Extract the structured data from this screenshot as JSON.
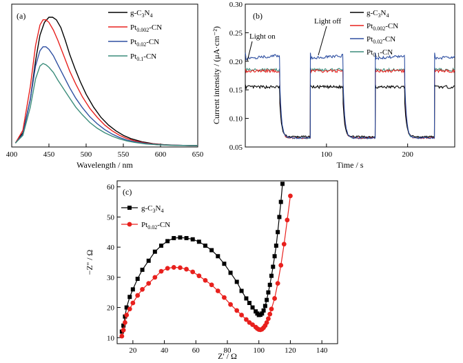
{
  "chart_data": [
    {
      "panel": "(a)",
      "type": "line",
      "xlabel": "Wavelength / nm",
      "ylabel": "",
      "xlim": [
        400,
        650
      ],
      "xticks": [
        400,
        450,
        500,
        550,
        600,
        650
      ],
      "legend_position": "top-right",
      "series": [
        {
          "name": "g-C3N4",
          "name_main": "g-C",
          "name_sub1": "3",
          "name_mid": "N",
          "name_sub2": "4",
          "name_end": "",
          "color": "#000000",
          "x": [
            405,
            415,
            425,
            432,
            438,
            444,
            450,
            455,
            460,
            466,
            472,
            478,
            485,
            492,
            500,
            510,
            520,
            530,
            540,
            550,
            560,
            575,
            590,
            605,
            620,
            635,
            650
          ],
          "y": [
            0.02,
            0.1,
            0.36,
            0.66,
            0.86,
            0.96,
            1.0,
            1.0,
            0.98,
            0.92,
            0.82,
            0.71,
            0.6,
            0.5,
            0.4,
            0.3,
            0.22,
            0.16,
            0.115,
            0.08,
            0.055,
            0.03,
            0.015,
            0.007,
            0.003,
            0.001,
            0.0
          ]
        },
        {
          "name": "Pt0.002-CN",
          "name_main": "Pt",
          "name_sub1": "0.002",
          "name_mid": "-CN",
          "name_sub2": "",
          "name_end": "",
          "color": "#e8201d",
          "x": [
            405,
            415,
            425,
            432,
            438,
            442,
            446,
            450,
            456,
            462,
            470,
            478,
            486,
            495,
            505,
            515,
            525,
            535,
            545,
            555,
            565,
            580,
            595,
            610,
            625,
            640,
            650
          ],
          "y": [
            0.02,
            0.12,
            0.46,
            0.78,
            0.94,
            0.98,
            0.98,
            0.96,
            0.9,
            0.82,
            0.7,
            0.58,
            0.48,
            0.38,
            0.29,
            0.22,
            0.16,
            0.115,
            0.08,
            0.055,
            0.037,
            0.02,
            0.01,
            0.004,
            0.002,
            0.0,
            0.0
          ]
        },
        {
          "name": "Pt0.02-CN",
          "name_main": "Pt",
          "name_sub1": "0.02",
          "name_mid": "-CN",
          "name_sub2": "",
          "name_end": "",
          "color": "#2e4fa1",
          "x": [
            405,
            415,
            425,
            432,
            438,
            442,
            446,
            450,
            456,
            462,
            470,
            478,
            486,
            495,
            505,
            515,
            525,
            535,
            545,
            555,
            565,
            580,
            595,
            610,
            625,
            640,
            650
          ],
          "y": [
            0.02,
            0.09,
            0.36,
            0.62,
            0.74,
            0.77,
            0.77,
            0.75,
            0.7,
            0.63,
            0.54,
            0.45,
            0.37,
            0.295,
            0.225,
            0.17,
            0.125,
            0.09,
            0.063,
            0.043,
            0.03,
            0.016,
            0.008,
            0.004,
            0.002,
            0.0,
            0.0
          ]
        },
        {
          "name": "Pt0.1-CN",
          "name_main": "Pt",
          "name_sub1": "0.1",
          "name_mid": "-CN",
          "name_sub2": "",
          "name_end": "",
          "color": "#3a8c7a",
          "x": [
            405,
            415,
            425,
            432,
            438,
            442,
            446,
            450,
            456,
            462,
            470,
            478,
            486,
            495,
            505,
            515,
            525,
            535,
            545,
            555,
            565,
            580,
            595,
            610,
            625,
            640,
            650
          ],
          "y": [
            0.02,
            0.08,
            0.3,
            0.52,
            0.62,
            0.64,
            0.63,
            0.61,
            0.57,
            0.51,
            0.44,
            0.37,
            0.3,
            0.24,
            0.18,
            0.135,
            0.1,
            0.073,
            0.052,
            0.036,
            0.025,
            0.013,
            0.007,
            0.003,
            0.001,
            0.0,
            0.0
          ]
        }
      ]
    },
    {
      "panel": "(b)",
      "type": "line",
      "xlabel": "Time / s",
      "ylabel": "Current intensity / (μA·cm⁻²)",
      "xlim": [
        0,
        258
      ],
      "ylim": [
        0.05,
        0.3
      ],
      "xticks": [
        100,
        200
      ],
      "yticks": [
        0.05,
        0.1,
        0.15,
        0.2,
        0.25,
        0.3
      ],
      "legend_position": "top-right",
      "annotations": [
        {
          "text": "Light on",
          "x": 0,
          "y": 0.255
        },
        {
          "text": "Light off",
          "x": 62,
          "y": 0.28
        }
      ],
      "on_intervals": [
        [
          0,
          42
        ],
        [
          80,
          120
        ],
        [
          160,
          196
        ],
        [
          233,
          258
        ]
      ],
      "series": [
        {
          "name": "g-C3N4",
          "name_main": "g-C",
          "name_sub1": "3",
          "name_mid": "N",
          "name_sub2": "4",
          "color": "#000000",
          "on_level": 0.155,
          "off_level": 0.068
        },
        {
          "name": "Pt0.002-CN",
          "name_main": "Pt",
          "name_sub1": "0.002",
          "name_mid": "-CN",
          "name_sub2": "",
          "color": "#e8201d",
          "on_level": 0.183,
          "off_level": 0.066
        },
        {
          "name": "Pt0.02-CN",
          "name_main": "Pt",
          "name_sub1": "0.02",
          "name_mid": "-CN",
          "name_sub2": "",
          "color": "#2e4fa1",
          "on_level": 0.205,
          "off_level": 0.066
        },
        {
          "name": "Pt0.1-CN",
          "name_main": "Pt",
          "name_sub1": "0.1",
          "name_mid": "-CN",
          "name_sub2": "",
          "color": "#3a8c7a",
          "on_level": 0.185,
          "off_level": 0.066
        }
      ]
    },
    {
      "panel": "(c)",
      "type": "scatter",
      "xlabel": "Z' / Ω",
      "ylabel": "−Z'' / Ω",
      "xlim": [
        10,
        150
      ],
      "ylim": [
        8,
        62
      ],
      "xticks": [
        20,
        40,
        60,
        80,
        100,
        120,
        140
      ],
      "yticks": [
        10,
        20,
        30,
        40,
        50,
        60
      ],
      "legend_position": "top-left",
      "series": [
        {
          "name": "g-C3N4",
          "name_main": "g-C",
          "name_sub1": "3",
          "name_mid": "N",
          "name_sub2": "4",
          "color": "#000000",
          "marker": "square",
          "x": [
            13,
            14,
            15,
            16,
            18,
            20,
            23,
            26,
            30,
            34,
            38,
            42,
            46,
            50,
            54,
            58,
            62,
            66,
            70,
            74,
            78,
            82,
            86,
            89,
            92,
            94,
            96,
            98,
            99,
            100,
            101,
            102,
            103,
            104,
            105,
            106,
            107,
            108,
            109,
            110,
            111,
            112,
            113,
            114,
            115
          ],
          "y": [
            12,
            14,
            17,
            20,
            23.5,
            26,
            29.5,
            32.5,
            35.5,
            38.5,
            40.5,
            42,
            43,
            43.2,
            43,
            42.6,
            41.8,
            40.5,
            39,
            37,
            34.5,
            31.5,
            28.5,
            25.5,
            23,
            21.5,
            20,
            18.7,
            18,
            17.5,
            17.6,
            18,
            19,
            20.5,
            22.5,
            25,
            27.5,
            30.5,
            33.5,
            37,
            40.5,
            45,
            50,
            55,
            61
          ]
        },
        {
          "name": "Pt0.02-CN",
          "name_main": "Pt",
          "name_sub1": "0.02",
          "name_mid": "-CN",
          "name_sub2": "",
          "color": "#e8201d",
          "marker": "circle",
          "x": [
            13,
            14,
            15,
            16,
            18,
            20,
            23,
            26,
            30,
            34,
            38,
            42,
            46,
            50,
            54,
            58,
            62,
            66,
            70,
            74,
            78,
            82,
            86,
            89,
            92,
            94,
            96,
            98,
            99,
            100,
            101,
            102,
            103,
            104,
            105,
            106,
            107,
            108,
            110,
            112,
            114,
            116,
            118,
            120
          ],
          "y": [
            10.5,
            12.5,
            15,
            17.5,
            19.5,
            21.5,
            24,
            26,
            28,
            30,
            32,
            33,
            33.3,
            33.2,
            32.7,
            31.8,
            30.5,
            29,
            27.5,
            25.5,
            23.3,
            21,
            19,
            17.5,
            16,
            15,
            14.3,
            13.5,
            13,
            12.7,
            12.6,
            12.8,
            13.3,
            14,
            15,
            16.3,
            17.8,
            19.5,
            23,
            28,
            34,
            41,
            49,
            57
          ]
        }
      ]
    }
  ]
}
